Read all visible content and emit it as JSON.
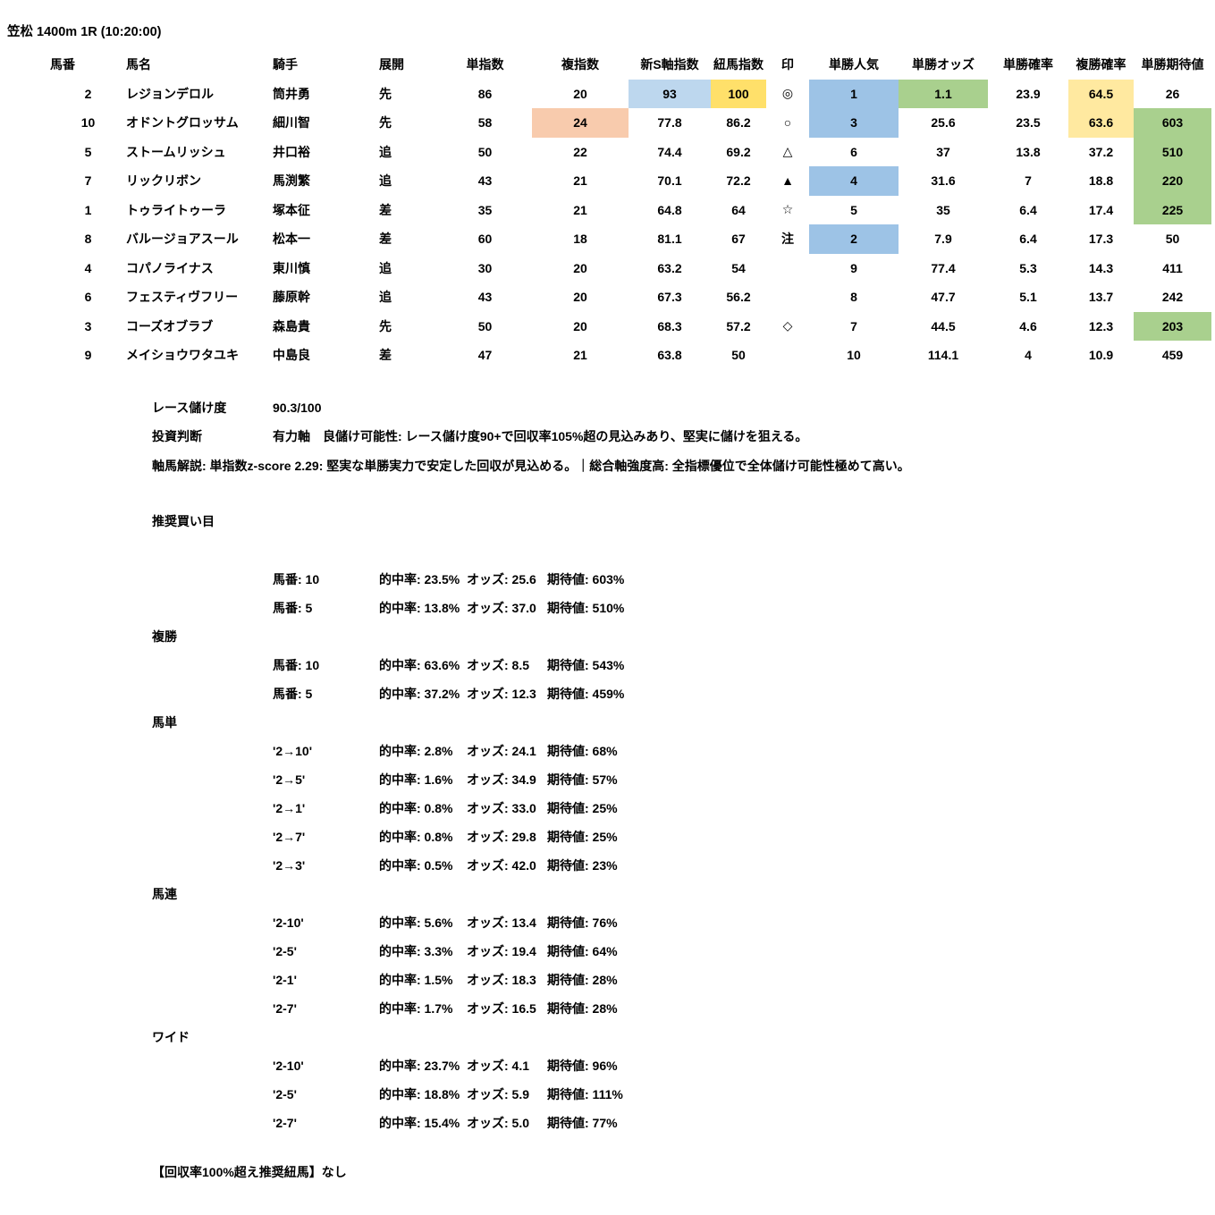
{
  "title": "笠松 1400m 1R (10:20:00)",
  "colors": {
    "hl-blue": "#9DC3E6",
    "hl-lightblue": "#BDD7EE",
    "hl-gold": "#FFE06A",
    "hl-yellow": "#FFE9A0",
    "hl-green": "#A9D08E",
    "hl-peach": "#F8CBAD"
  },
  "table": {
    "headers": [
      "馬番",
      "馬名",
      "騎手",
      "展開",
      "単指数",
      "複指数",
      "新S軸指数",
      "紐馬指数",
      "印",
      "単勝人気",
      "単勝オッズ",
      "単勝確率",
      "複勝確率",
      "単勝期待値"
    ],
    "rows": [
      {
        "cells": [
          "2",
          "レジョンデロル",
          "筒井勇",
          "先",
          "86",
          "20",
          "93",
          "100",
          "◎",
          "1",
          "1.1",
          "23.9",
          "64.5",
          "26"
        ],
        "hl": {
          "6": "lightblue",
          "7": "gold",
          "9": "blue",
          "10": "green",
          "12": "yellow"
        }
      },
      {
        "cells": [
          "10",
          "オドントグロッサム",
          "細川智",
          "先",
          "58",
          "24",
          "77.8",
          "86.2",
          "○",
          "3",
          "25.6",
          "23.5",
          "63.6",
          "603"
        ],
        "hl": {
          "5": "peach",
          "9": "blue",
          "12": "yellow",
          "13": "green"
        }
      },
      {
        "cells": [
          "5",
          "ストームリッシュ",
          "井口裕",
          "追",
          "50",
          "22",
          "74.4",
          "69.2",
          "△",
          "6",
          "37",
          "13.8",
          "37.2",
          "510"
        ],
        "hl": {
          "13": "green"
        }
      },
      {
        "cells": [
          "7",
          "リックリボン",
          "馬渕繁",
          "追",
          "43",
          "21",
          "70.1",
          "72.2",
          "▲",
          "4",
          "31.6",
          "7",
          "18.8",
          "220"
        ],
        "hl": {
          "9": "blue",
          "13": "green"
        }
      },
      {
        "cells": [
          "1",
          "トゥライトゥーラ",
          "塚本征",
          "差",
          "35",
          "21",
          "64.8",
          "64",
          "☆",
          "5",
          "35",
          "6.4",
          "17.4",
          "225"
        ],
        "hl": {
          "13": "green"
        }
      },
      {
        "cells": [
          "8",
          "バルージョアスール",
          "松本一",
          "差",
          "60",
          "18",
          "81.1",
          "67",
          "注",
          "2",
          "7.9",
          "6.4",
          "17.3",
          "50"
        ],
        "hl": {
          "9": "blue"
        }
      },
      {
        "cells": [
          "4",
          "コパノライナス",
          "東川慎",
          "追",
          "30",
          "20",
          "63.2",
          "54",
          "",
          "9",
          "77.4",
          "5.3",
          "14.3",
          "411"
        ],
        "hl": {}
      },
      {
        "cells": [
          "6",
          "フェスティヴフリー",
          "藤原幹",
          "追",
          "43",
          "20",
          "67.3",
          "56.2",
          "",
          "8",
          "47.7",
          "5.1",
          "13.7",
          "242"
        ],
        "hl": {}
      },
      {
        "cells": [
          "3",
          "コーズオブラブ",
          "森島貴",
          "先",
          "50",
          "20",
          "68.3",
          "57.2",
          "◇",
          "7",
          "44.5",
          "4.6",
          "12.3",
          "203"
        ],
        "hl": {
          "13": "green"
        }
      },
      {
        "cells": [
          "9",
          "メイショウワタユキ",
          "中島良",
          "差",
          "47",
          "21",
          "63.8",
          "50",
          "",
          "10",
          "114.1",
          "4",
          "10.9",
          "459"
        ],
        "hl": {}
      }
    ]
  },
  "summary": {
    "rows": [
      {
        "label": "レース儲け度",
        "value": "90.3/100"
      },
      {
        "label": "投資判断",
        "value": "有力軸　良儲け可能性: レース儲け度90+で回収率105%超の見込みあり、堅実に儲けを狙える。"
      }
    ],
    "note": "軸馬解説: 単指数z-score 2.29: 堅実な単勝実力で安定した回収が見込める。｜総合軸強度高: 全指標優位で全体儲け可能性極めて高い。"
  },
  "bets": {
    "title": "推奨買い目",
    "sections": [
      {
        "label": "",
        "rows": [
          {
            "selection": "馬番: 10",
            "hit": "的中率: 23.5%",
            "odds": "オッズ: 25.6",
            "ev": "期待値: 603%"
          },
          {
            "selection": "馬番: 5",
            "hit": "的中率: 13.8%",
            "odds": "オッズ: 37.0",
            "ev": "期待値: 510%"
          }
        ]
      },
      {
        "label": "複勝",
        "rows": [
          {
            "selection": "馬番: 10",
            "hit": "的中率: 63.6%",
            "odds": "オッズ: 8.5",
            "ev": "期待値: 543%"
          },
          {
            "selection": "馬番: 5",
            "hit": "的中率: 37.2%",
            "odds": "オッズ: 12.3",
            "ev": "期待値: 459%"
          }
        ]
      },
      {
        "label": "馬単",
        "rows": [
          {
            "selection": "'2→10'",
            "hit": "的中率: 2.8%",
            "odds": "オッズ: 24.1",
            "ev": "期待値: 68%"
          },
          {
            "selection": "'2→5'",
            "hit": "的中率: 1.6%",
            "odds": "オッズ: 34.9",
            "ev": "期待値: 57%"
          },
          {
            "selection": "'2→1'",
            "hit": "的中率: 0.8%",
            "odds": "オッズ: 33.0",
            "ev": "期待値: 25%"
          },
          {
            "selection": "'2→7'",
            "hit": "的中率: 0.8%",
            "odds": "オッズ: 29.8",
            "ev": "期待値: 25%"
          },
          {
            "selection": "'2→3'",
            "hit": "的中率: 0.5%",
            "odds": "オッズ: 42.0",
            "ev": "期待値: 23%"
          }
        ]
      },
      {
        "label": "馬連",
        "rows": [
          {
            "selection": "'2-10'",
            "hit": "的中率: 5.6%",
            "odds": "オッズ: 13.4",
            "ev": "期待値: 76%"
          },
          {
            "selection": "'2-5'",
            "hit": "的中率: 3.3%",
            "odds": "オッズ: 19.4",
            "ev": "期待値: 64%"
          },
          {
            "selection": "'2-1'",
            "hit": "的中率: 1.5%",
            "odds": "オッズ: 18.3",
            "ev": "期待値: 28%"
          },
          {
            "selection": "'2-7'",
            "hit": "的中率: 1.7%",
            "odds": "オッズ: 16.5",
            "ev": "期待値: 28%"
          }
        ]
      },
      {
        "label": "ワイド",
        "rows": [
          {
            "selection": "'2-10'",
            "hit": "的中率: 23.7%",
            "odds": "オッズ: 4.1",
            "ev": "期待値: 96%"
          },
          {
            "selection": "'2-5'",
            "hit": "的中率: 18.8%",
            "odds": "オッズ: 5.9",
            "ev": "期待値: 111%"
          },
          {
            "selection": "'2-7'",
            "hit": "的中率: 15.4%",
            "odds": "オッズ: 5.0",
            "ev": "期待値: 77%"
          }
        ]
      }
    ]
  },
  "footer_note": "【回収率100%超え推奨紐馬】なし"
}
